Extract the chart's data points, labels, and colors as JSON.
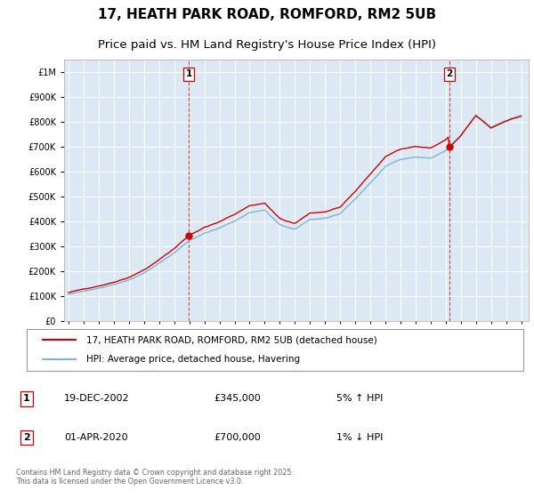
{
  "title": "17, HEATH PARK ROAD, ROMFORD, RM2 5UB",
  "subtitle": "Price paid vs. HM Land Registry's House Price Index (HPI)",
  "ytick_values": [
    0,
    100000,
    200000,
    300000,
    400000,
    500000,
    600000,
    700000,
    800000,
    900000,
    1000000
  ],
  "ylim": [
    0,
    1050000
  ],
  "xlim_start": 1994.7,
  "xlim_end": 2025.5,
  "plot_bg_color": "#dce9f5",
  "line1_color": "#cc0000",
  "line2_color": "#7fb3d3",
  "marker1_date": 2002.97,
  "marker2_date": 2020.25,
  "marker1_value": 345000,
  "marker2_value": 700000,
  "legend_label1": "17, HEATH PARK ROAD, ROMFORD, RM2 5UB (detached house)",
  "legend_label2": "HPI: Average price, detached house, Havering",
  "annotation1_num": "1",
  "annotation1_date": "19-DEC-2002",
  "annotation1_price": "£345,000",
  "annotation1_hpi": "5% ↑ HPI",
  "annotation2_num": "2",
  "annotation2_date": "01-APR-2020",
  "annotation2_price": "£700,000",
  "annotation2_hpi": "1% ↓ HPI",
  "footer": "Contains HM Land Registry data © Crown copyright and database right 2025.\nThis data is licensed under the Open Government Licence v3.0.",
  "title_fontsize": 11,
  "subtitle_fontsize": 9.5
}
